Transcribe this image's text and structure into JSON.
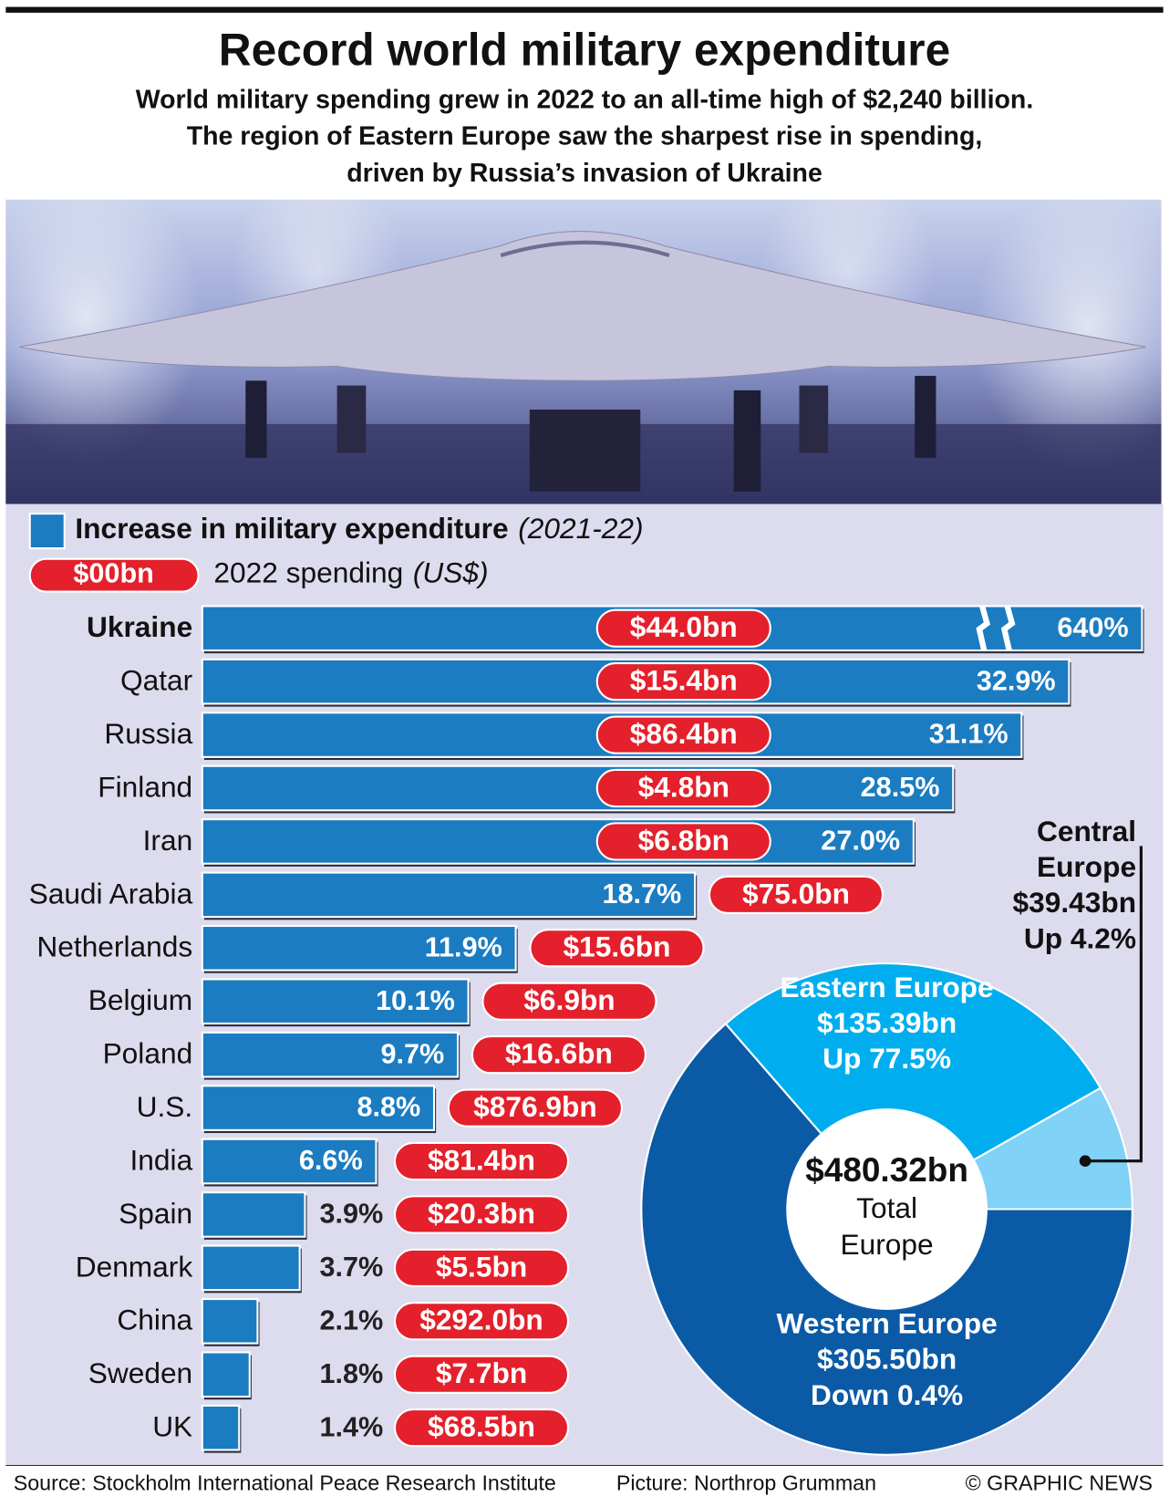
{
  "header": {
    "title": "Record world military expenditure",
    "subtitle_lines": [
      "World military spending grew in 2022 to an all-time high of $2,240 billion.",
      "The region of Eastern Europe saw the sharpest rise in spending,",
      "driven by Russia’s invasion of Ukraine"
    ]
  },
  "chart_data": [
    {
      "type": "bar",
      "orientation": "horizontal",
      "legend": {
        "increase_period": "(2021-22)",
        "spending_sample": "$00bn",
        "spending_unit": "(US$)"
      },
      "categories": [
        "Ukraine",
        "Qatar",
        "Russia",
        "Finland",
        "Iran",
        "Saudi Arabia",
        "Netherlands",
        "Belgium",
        "Poland",
        "U.S.",
        "India",
        "Spain",
        "Denmark",
        "China",
        "Sweden",
        "UK"
      ],
      "xlim": [
        0,
        36
      ],
      "series": [
        {
          "name": "Increase in military expenditure",
          "color": "#1b7cc1",
          "values": [
            640,
            32.9,
            31.1,
            28.5,
            27.0,
            18.7,
            11.9,
            10.1,
            9.7,
            8.8,
            6.6,
            3.9,
            3.7,
            2.1,
            1.8,
            1.4
          ],
          "value_labels": [
            "640%",
            "32.9%",
            "31.1%",
            "28.5%",
            "27.0%",
            "18.7%",
            "11.9%",
            "10.1%",
            "9.7%",
            "8.8%",
            "6.6%",
            "3.9%",
            "3.7%",
            "2.1%",
            "1.8%",
            "1.4%"
          ]
        },
        {
          "name": "2022 spending",
          "color": "#e3202b",
          "values": [
            44.0,
            15.4,
            86.4,
            4.8,
            6.8,
            75.0,
            15.6,
            6.9,
            16.6,
            876.9,
            81.4,
            20.3,
            5.5,
            292.0,
            7.7,
            68.5
          ],
          "value_labels": [
            "$44.0bn",
            "$15.4bn",
            "$86.4bn",
            "$4.8bn",
            "$6.8bn",
            "$75.0bn",
            "$15.6bn",
            "$6.9bn",
            "$16.6bn",
            "$876.9bn",
            "$81.4bn",
            "$20.3bn",
            "$5.5bn",
            "$292.0bn",
            "$7.7bn",
            "$68.5bn"
          ]
        }
      ]
    },
    {
      "type": "donut",
      "total": {
        "value": 480.32,
        "label": "$480.32bn"
      },
      "total_lines": [
        "Total",
        "Europe"
      ],
      "categories": [
        "Western Europe",
        "Eastern Europe",
        "Central Europe"
      ],
      "values": [
        305.5,
        135.39,
        39.43
      ],
      "value_labels": [
        "$305.50bn",
        "$135.39bn",
        "$39.43bn"
      ],
      "change_labels": [
        "Down 0.4%",
        "Up 77.5%",
        "Up 4.2%"
      ],
      "colors": [
        "#0b5aa6",
        "#00aeef",
        "#80d2f6"
      ]
    }
  ],
  "footer": {
    "source": "Source: Stockholm International Peace Research Institute",
    "credit": "Picture: Northrop Grumman",
    "copyright": "© GRAPHIC NEWS"
  }
}
